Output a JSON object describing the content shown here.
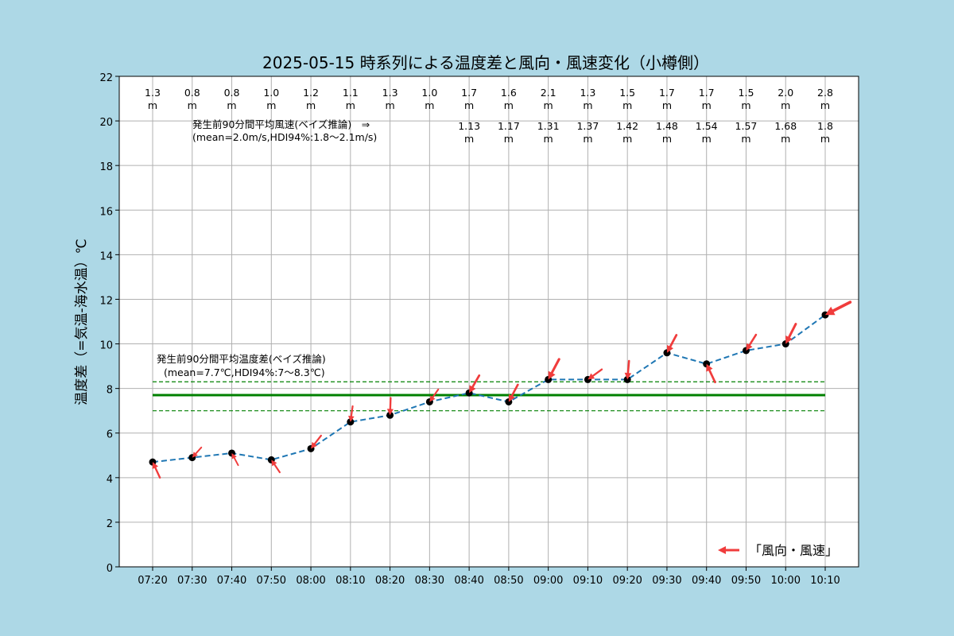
{
  "chart_data": {
    "type": "line",
    "title": "2025-05-15 時系列による温度差と風向・風速変化（小樽側）",
    "ylabel": "温度差（=気温-海水温）℃",
    "xlabel": "",
    "ylim": [
      0,
      22
    ],
    "yticks": [
      0,
      2,
      4,
      6,
      8,
      10,
      12,
      14,
      16,
      18,
      20,
      22
    ],
    "grid": true,
    "categories": [
      "07:20",
      "07:30",
      "07:40",
      "07:50",
      "08:00",
      "08:10",
      "08:20",
      "08:30",
      "08:40",
      "08:50",
      "09:00",
      "09:10",
      "09:20",
      "09:30",
      "09:40",
      "09:50",
      "10:00",
      "10:10"
    ],
    "series": [
      {
        "values": [
          4.7,
          4.9,
          5.1,
          4.8,
          5.3,
          6.5,
          6.8,
          7.4,
          7.8,
          7.4,
          8.4,
          8.4,
          8.4,
          9.6,
          9.1,
          9.7,
          10.0,
          11.3
        ],
        "color": "#1f77b4",
        "style": "dashed"
      }
    ],
    "wind": {
      "speed_labels": [
        "1.3",
        "0.8",
        "0.8",
        "1.0",
        "1.2",
        "1.1",
        "1.3",
        "1.0",
        "1.7",
        "1.6",
        "2.1",
        "1.3",
        "1.5",
        "1.7",
        "1.7",
        "1.5",
        "2.0",
        "2.8"
      ],
      "speeds": [
        1.3,
        0.8,
        0.8,
        1.0,
        1.2,
        1.1,
        1.3,
        1.0,
        1.7,
        1.6,
        2.1,
        1.3,
        1.5,
        1.7,
        1.7,
        1.5,
        2.0,
        2.8
      ],
      "arrow_angles_deg": [
        -65,
        48,
        -62,
        -56,
        52,
        82,
        88,
        55,
        60,
        62,
        62,
        36,
        85,
        62,
        -65,
        58,
        63,
        27
      ],
      "unit": "m",
      "color": "#f03c3c"
    },
    "bayes_speed_labels": [
      null,
      null,
      null,
      null,
      null,
      null,
      null,
      null,
      "1.13",
      "1.17",
      "1.31",
      "1.37",
      "1.42",
      "1.48",
      "1.54",
      "1.57",
      "1.68",
      "1.8"
    ],
    "annotations": {
      "wind_bayes_line1": "発生前90分間平均風速(ベイズ推論)　⇒",
      "wind_bayes_line2": "(mean=2.0m/s,HDI94%:1.8～2.1m/s)",
      "temp_bayes_line1": "発生前90分間平均温度差(ベイズ推論)",
      "temp_bayes_line2": "(mean=7.7℃,HDI94%:7～8.3℃)"
    },
    "reference_lines": {
      "mean": 7.7,
      "hdi_low": 7.0,
      "hdi_high": 8.3,
      "color": "#008000"
    },
    "legend": {
      "label": "「風向・風速」",
      "placement": "bottom-right"
    }
  }
}
